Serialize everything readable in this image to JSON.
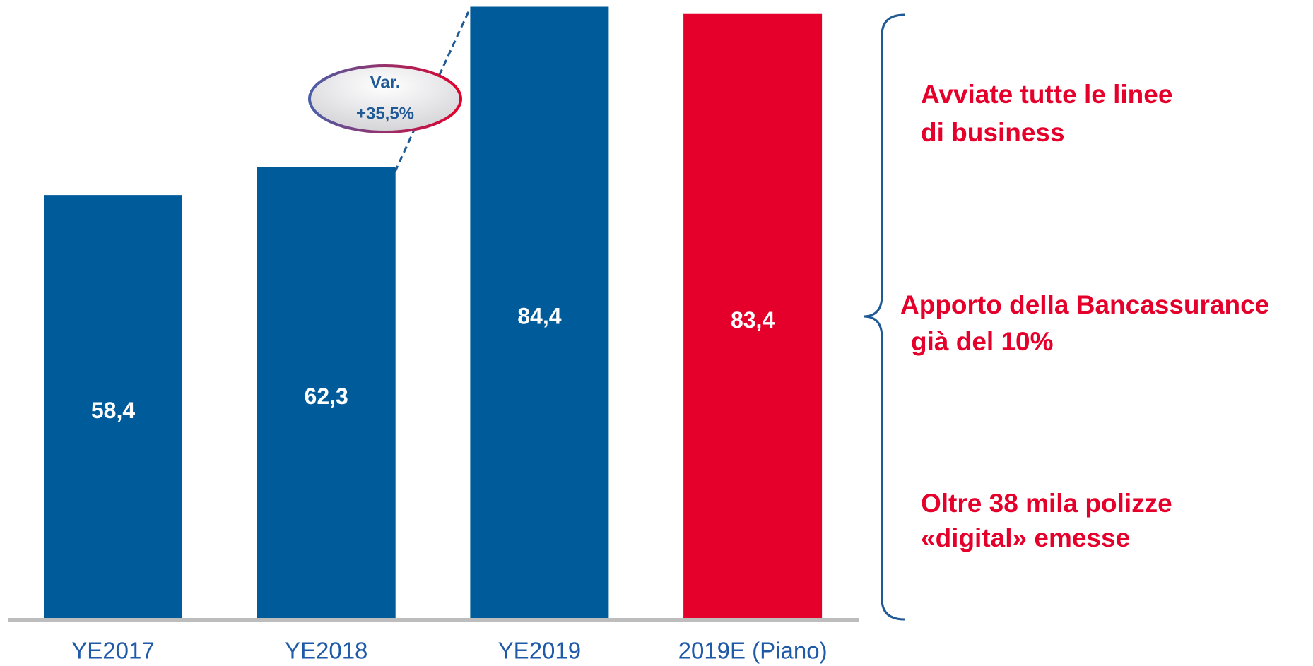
{
  "chart_data": {
    "type": "bar",
    "categories": [
      "YE2017",
      "YE2018",
      "YE2019",
      "2019E (Piano)"
    ],
    "values": [
      58.4,
      62.3,
      84.4,
      83.4
    ],
    "value_labels": [
      "58,4",
      "62,3",
      "84,4",
      "83,4"
    ],
    "colors": [
      "#005b9a",
      "#005b9a",
      "#005b9a",
      "#e4002b"
    ],
    "change_label": [
      "Var.",
      "+35,5%"
    ],
    "notes": [
      [
        "Avviate tutte le linee",
        "di business"
      ],
      [
        "Apporto della Bancassurance",
        "già del 10%"
      ],
      [
        "Oltre 38 mila polizze",
        "«digital» emesse"
      ]
    ]
  }
}
